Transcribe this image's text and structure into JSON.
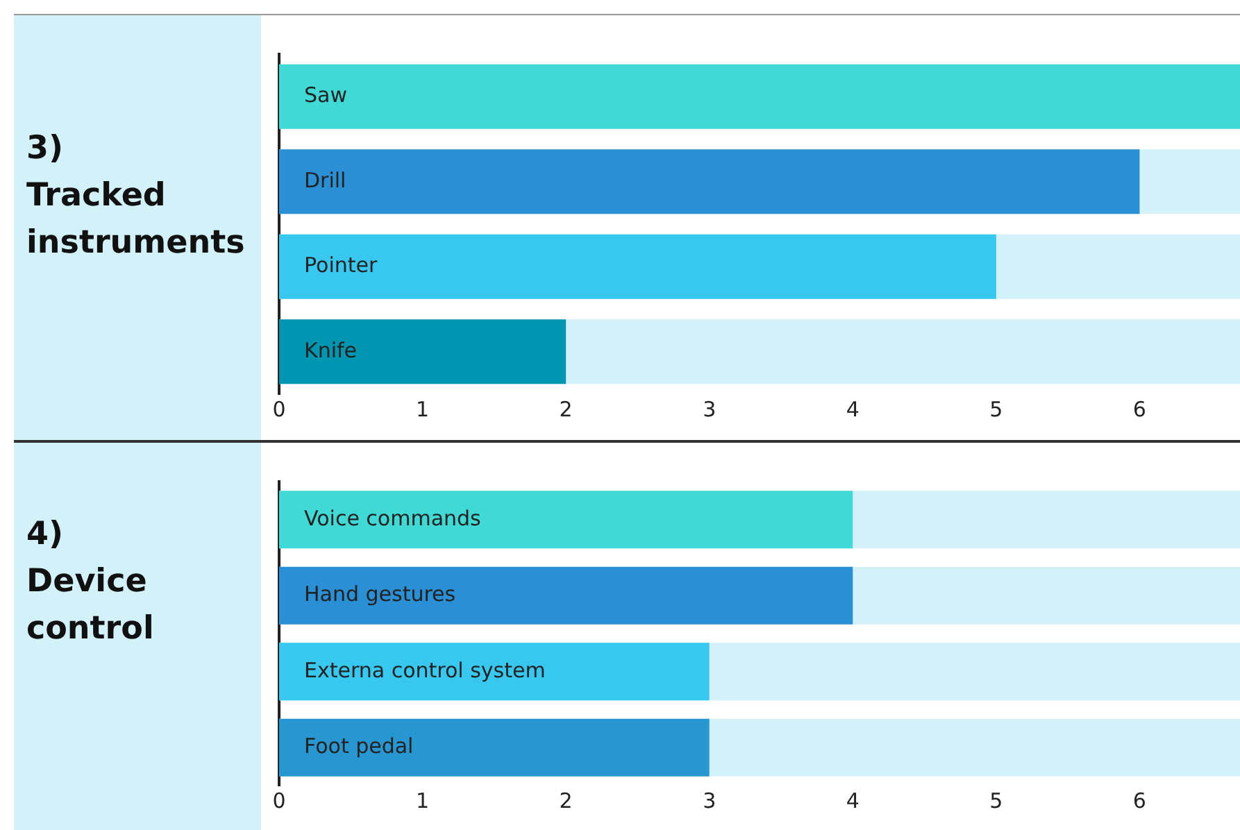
{
  "chart_data": [
    {
      "type": "bar",
      "orientation": "horizontal",
      "title": "3)\nTracked instruments",
      "categories": [
        "Saw",
        "Drill",
        "Pointer",
        "Knife"
      ],
      "values": [
        6.7,
        6,
        5,
        2
      ],
      "colors": [
        "#40d9d5",
        "#2b8fd6",
        "#38c8ef",
        "#0095b0"
      ],
      "xlim": [
        0,
        6.7
      ],
      "xticks": [
        0,
        1,
        2,
        3,
        4,
        5,
        6
      ],
      "grid": false,
      "legend": false
    },
    {
      "type": "bar",
      "orientation": "horizontal",
      "title": "4)\nDevice control",
      "categories": [
        "Voice commands",
        "Hand gestures",
        "Externa control system",
        "Foot pedal"
      ],
      "values": [
        4,
        4,
        3,
        3
      ],
      "colors": [
        "#40d9d5",
        "#2b8fd6",
        "#38c8ef",
        "#2896d0"
      ],
      "xlim": [
        0,
        6.7
      ],
      "xticks": [
        0,
        1,
        2,
        3,
        4,
        5,
        6
      ],
      "grid": false,
      "legend": false
    }
  ]
}
